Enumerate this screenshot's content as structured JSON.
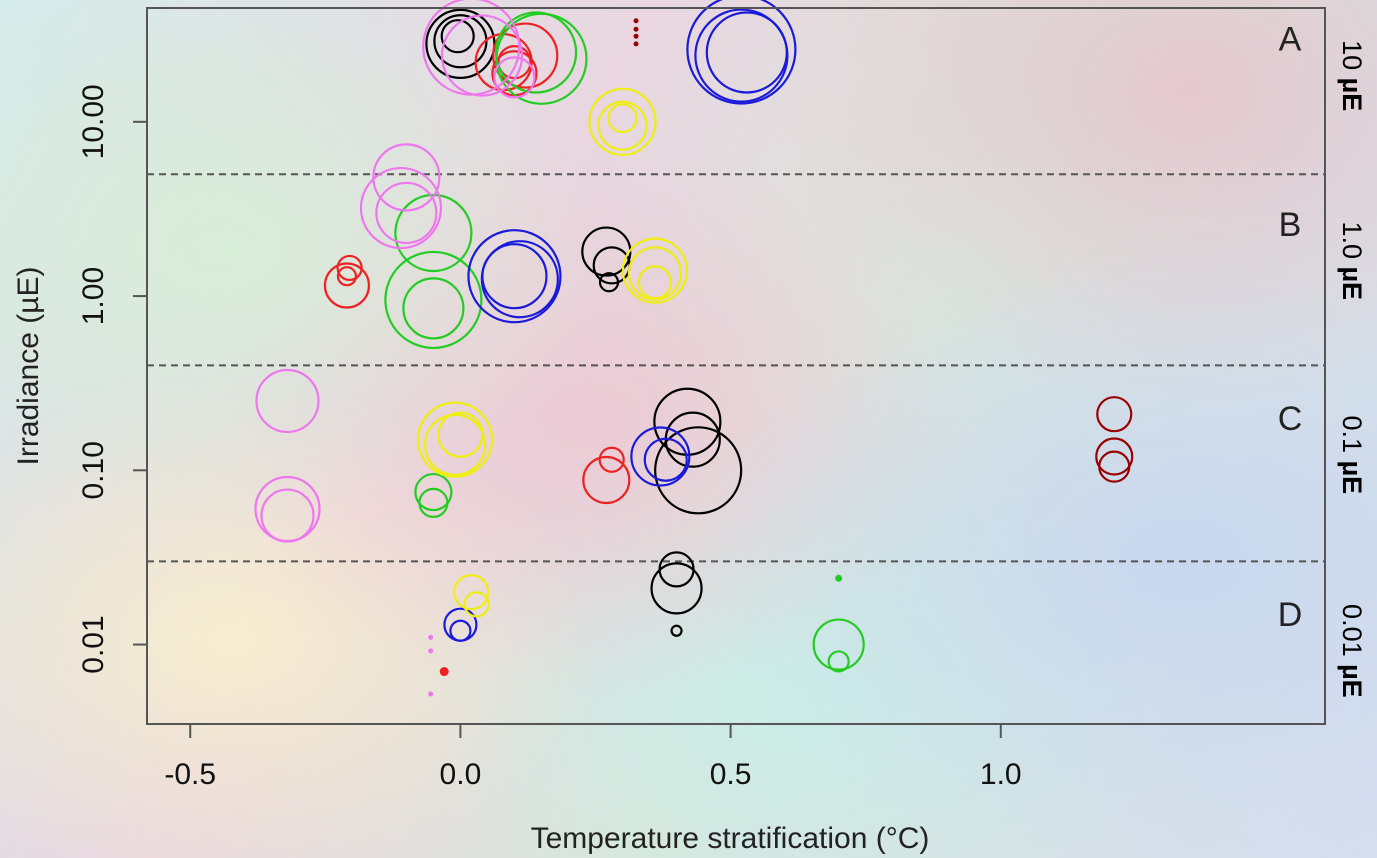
{
  "chart_data": {
    "type": "scatter",
    "xlabel": "Temperature stratification (°C)",
    "ylabel": "Irradiance (µE)",
    "xlim": [
      -0.58,
      1.6
    ],
    "ylim": [
      0.0035,
      45
    ],
    "yscale": "log",
    "x_ticks": [
      {
        "value": -0.5,
        "label": "-0.5"
      },
      {
        "value": 0.0,
        "label": "0.0"
      },
      {
        "value": 0.5,
        "label": "0.5"
      },
      {
        "value": 1.0,
        "label": "1.0"
      }
    ],
    "y_ticks": [
      {
        "value": 10,
        "label": "10.00"
      },
      {
        "value": 1,
        "label": "1.00"
      },
      {
        "value": 0.1,
        "label": "0.10"
      },
      {
        "value": 0.01,
        "label": "0.01"
      }
    ],
    "reference_lines": [
      5,
      0.4,
      0.03
    ],
    "panels": [
      {
        "label": "A",
        "value": 30,
        "right_label": {
          "prefix": "10 ",
          "unit": "µE"
        }
      },
      {
        "label": "B",
        "value": 2.6,
        "right_label": {
          "prefix": "1.0 ",
          "unit": "µE"
        }
      },
      {
        "label": "C",
        "value": 0.2,
        "right_label": {
          "prefix": "0.1 ",
          "unit": "µE"
        }
      },
      {
        "label": "D",
        "value": 0.015,
        "right_label": {
          "prefix": "0.01 ",
          "unit": "µE"
        }
      }
    ],
    "series": [
      {
        "color": "#000000",
        "points": [
          {
            "x": 0.0,
            "y": 28,
            "r": 34
          },
          {
            "x": 0.0,
            "y": 29,
            "r": 26
          },
          {
            "x": -0.005,
            "y": 31,
            "r": 16
          },
          {
            "x": 0.27,
            "y": 1.8,
            "r": 24
          },
          {
            "x": 0.28,
            "y": 1.5,
            "r": 18
          },
          {
            "x": 0.275,
            "y": 1.2,
            "r": 9
          },
          {
            "x": 0.42,
            "y": 0.19,
            "r": 33
          },
          {
            "x": 0.43,
            "y": 0.15,
            "r": 27
          },
          {
            "x": 0.44,
            "y": 0.1,
            "r": 43
          },
          {
            "x": 0.4,
            "y": 0.027,
            "r": 17
          },
          {
            "x": 0.4,
            "y": 0.021,
            "r": 25
          },
          {
            "x": 0.4,
            "y": 0.012,
            "r": 5
          }
        ]
      },
      {
        "color": "#ee2222",
        "points": [
          {
            "x": 0.08,
            "y": 22,
            "r": 28
          },
          {
            "x": 0.1,
            "y": 19,
            "r": 22
          },
          {
            "x": 0.1,
            "y": 22,
            "r": 16
          },
          {
            "x": 0.12,
            "y": 24,
            "r": 32
          },
          {
            "x": -0.21,
            "y": 1.15,
            "r": 22
          },
          {
            "x": -0.205,
            "y": 1.45,
            "r": 12
          },
          {
            "x": -0.21,
            "y": 1.3,
            "r": 9
          },
          {
            "x": 0.27,
            "y": 0.088,
            "r": 23
          },
          {
            "x": 0.28,
            "y": 0.115,
            "r": 12
          },
          {
            "x": -0.03,
            "y": 0.007,
            "r": 4,
            "filled": true
          }
        ]
      },
      {
        "color": "#22cc22",
        "points": [
          {
            "x": 0.15,
            "y": 23,
            "r": 45
          },
          {
            "x": 0.14,
            "y": 25,
            "r": 40
          },
          {
            "x": -0.05,
            "y": 2.3,
            "r": 38
          },
          {
            "x": -0.05,
            "y": 0.95,
            "r": 48
          },
          {
            "x": -0.05,
            "y": 0.85,
            "r": 30
          },
          {
            "x": -0.05,
            "y": 0.075,
            "r": 18
          },
          {
            "x": -0.05,
            "y": 0.065,
            "r": 14
          },
          {
            "x": 0.7,
            "y": 0.01,
            "r": 25
          },
          {
            "x": 0.7,
            "y": 0.008,
            "r": 10
          },
          {
            "x": 0.7,
            "y": 0.024,
            "r": 3,
            "filled": true
          }
        ]
      },
      {
        "color": "#1a1adb",
        "points": [
          {
            "x": 0.52,
            "y": 26,
            "r": 54
          },
          {
            "x": 0.52,
            "y": 24,
            "r": 46
          },
          {
            "x": 0.53,
            "y": 25,
            "r": 40
          },
          {
            "x": 0.1,
            "y": 1.3,
            "r": 46
          },
          {
            "x": 0.11,
            "y": 1.25,
            "r": 38
          },
          {
            "x": 0.1,
            "y": 1.3,
            "r": 32
          },
          {
            "x": 0.37,
            "y": 0.12,
            "r": 29
          },
          {
            "x": 0.38,
            "y": 0.115,
            "r": 21
          },
          {
            "x": 0.0,
            "y": 0.013,
            "r": 16
          },
          {
            "x": 0.0,
            "y": 0.012,
            "r": 10
          }
        ]
      },
      {
        "color": "#eeee11",
        "points": [
          {
            "x": 0.3,
            "y": 10,
            "r": 33
          },
          {
            "x": 0.3,
            "y": 9.5,
            "r": 24
          },
          {
            "x": 0.3,
            "y": 10.5,
            "r": 14
          },
          {
            "x": 0.36,
            "y": 1.4,
            "r": 32
          },
          {
            "x": 0.36,
            "y": 1.35,
            "r": 26
          },
          {
            "x": 0.36,
            "y": 1.2,
            "r": 16
          },
          {
            "x": -0.01,
            "y": 0.15,
            "r": 37
          },
          {
            "x": -0.01,
            "y": 0.14,
            "r": 30
          },
          {
            "x": 0.0,
            "y": 0.16,
            "r": 22
          },
          {
            "x": 0.02,
            "y": 0.02,
            "r": 17
          },
          {
            "x": 0.03,
            "y": 0.017,
            "r": 12
          }
        ]
      },
      {
        "color": "#ee77ee",
        "points": [
          {
            "x": 0.02,
            "y": 27,
            "r": 48
          },
          {
            "x": 0.04,
            "y": 24,
            "r": 40
          },
          {
            "x": 0.1,
            "y": 18,
            "r": 20
          },
          {
            "x": -0.1,
            "y": 4.8,
            "r": 33
          },
          {
            "x": -0.11,
            "y": 3.2,
            "r": 40
          },
          {
            "x": -0.1,
            "y": 3.0,
            "r": 30
          },
          {
            "x": -0.32,
            "y": 0.25,
            "r": 31
          },
          {
            "x": -0.32,
            "y": 0.06,
            "r": 32
          },
          {
            "x": -0.32,
            "y": 0.055,
            "r": 26
          },
          {
            "x": -0.055,
            "y": 0.011,
            "r": 2,
            "filled": true
          },
          {
            "x": -0.055,
            "y": 0.0092,
            "r": 2,
            "filled": true
          },
          {
            "x": -0.055,
            "y": 0.0052,
            "r": 2,
            "filled": true
          }
        ]
      },
      {
        "color": "#990000",
        "points": [
          {
            "x": 1.21,
            "y": 0.21,
            "r": 17
          },
          {
            "x": 1.21,
            "y": 0.12,
            "r": 18
          },
          {
            "x": 1.21,
            "y": 0.105,
            "r": 15
          },
          {
            "x": 0.325,
            "y": 38,
            "r": 2,
            "filled": true
          },
          {
            "x": 0.325,
            "y": 34,
            "r": 2,
            "filled": true
          },
          {
            "x": 0.325,
            "y": 31,
            "r": 2,
            "filled": true
          },
          {
            "x": 0.325,
            "y": 28,
            "r": 2,
            "filled": true
          }
        ]
      }
    ]
  }
}
